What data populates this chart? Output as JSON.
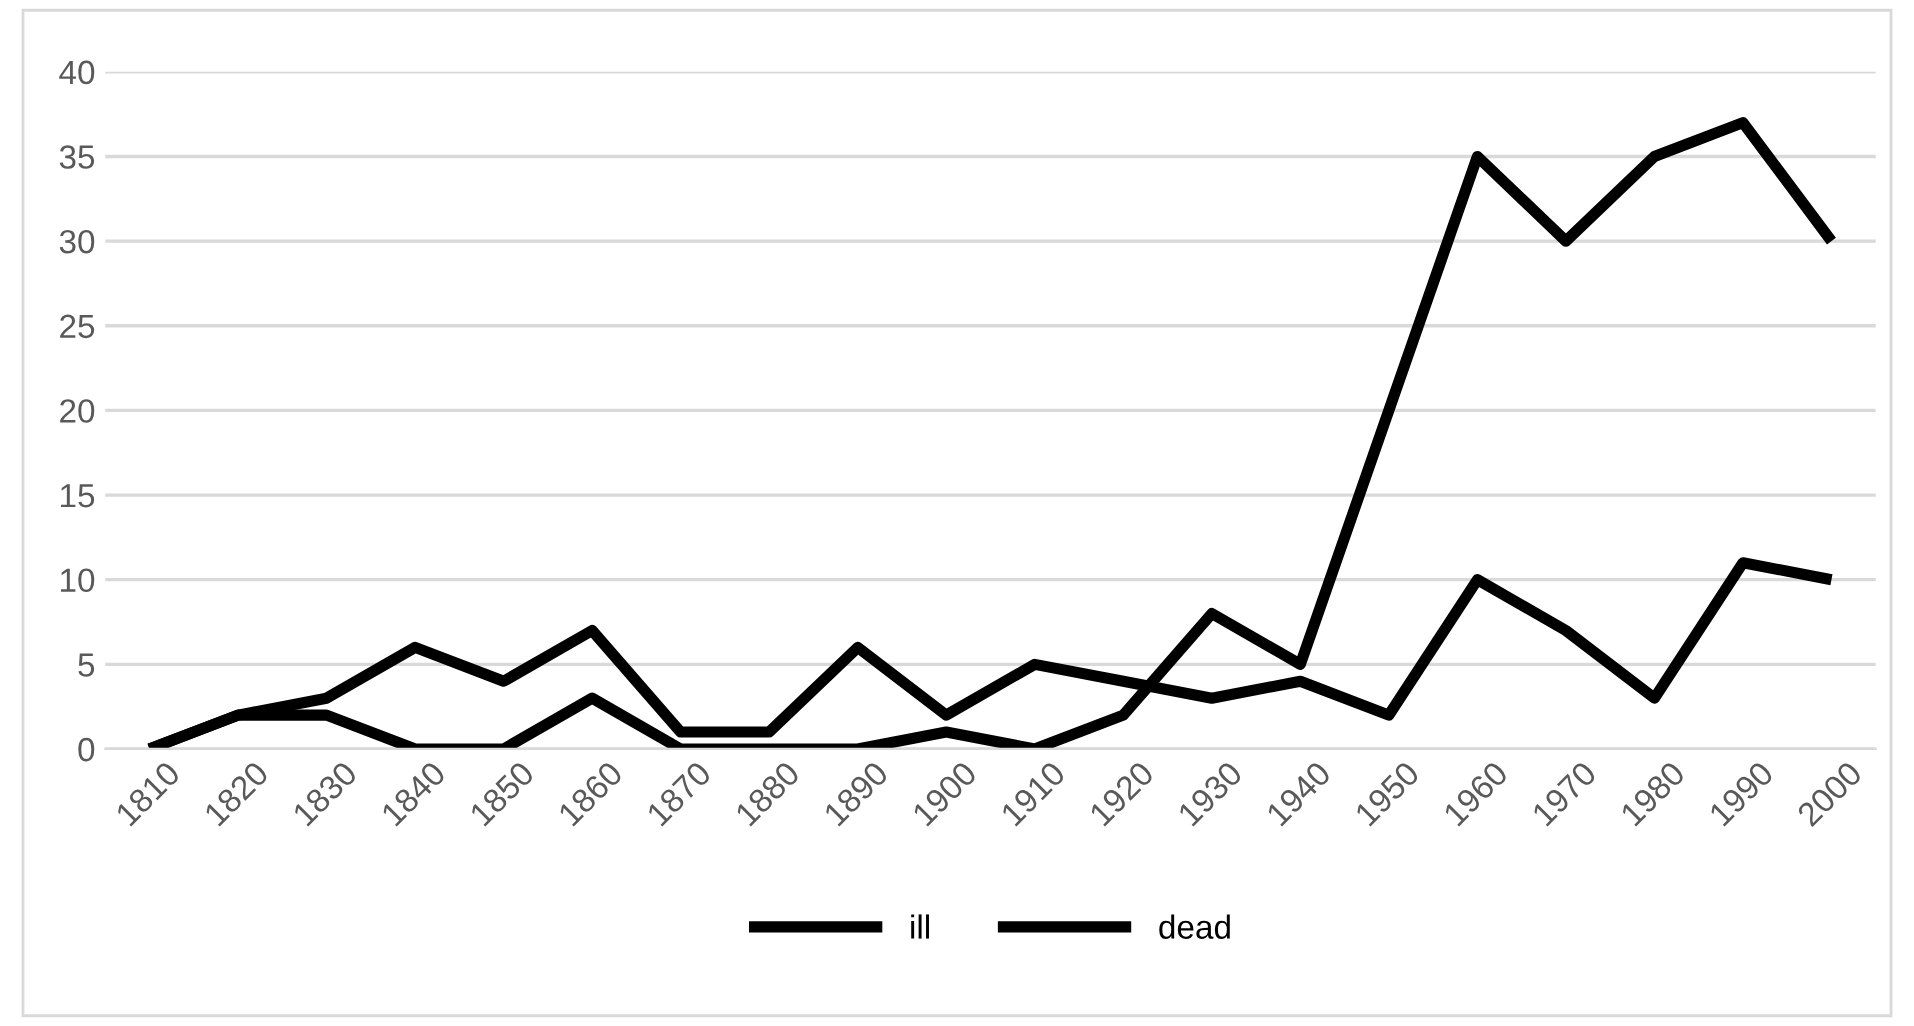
{
  "chart_data": {
    "type": "line",
    "categories": [
      "1810",
      "1820",
      "1830",
      "1840",
      "1850",
      "1860",
      "1870",
      "1880",
      "1890",
      "1900",
      "1910",
      "1920",
      "1930",
      "1940",
      "1950",
      "1960",
      "1970",
      "1980",
      "1990",
      "2000"
    ],
    "series": [
      {
        "name": "ill",
        "color": "#000000",
        "values": [
          0,
          2,
          2,
          0,
          0,
          3,
          0,
          0,
          0,
          1,
          0,
          2,
          8,
          5,
          20,
          35,
          30,
          35,
          37,
          30
        ]
      },
      {
        "name": "dead",
        "color": "#000000",
        "values": [
          0,
          2,
          3,
          6,
          4,
          7,
          1,
          1,
          6,
          2,
          5,
          4,
          3,
          4,
          2,
          10,
          7,
          3,
          11,
          10
        ]
      }
    ],
    "ylim": [
      0,
      40
    ],
    "yticks": [
      0,
      5,
      10,
      15,
      20,
      25,
      30,
      35,
      40
    ],
    "grid": "y",
    "legend": "bottom",
    "marker": "none",
    "line_style": "solid"
  }
}
